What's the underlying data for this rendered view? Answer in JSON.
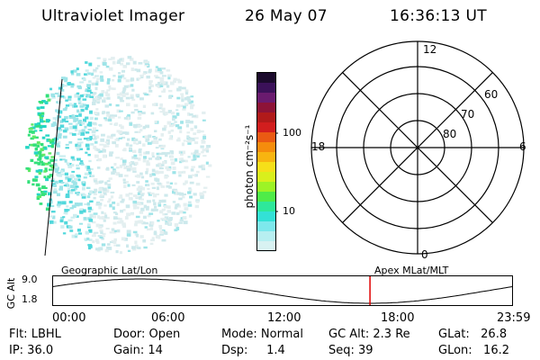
{
  "header": {
    "instrument": "Ultraviolet Imager",
    "date": "26 May 07",
    "time": "16:36:13 UT"
  },
  "colorbar": {
    "unit_label": "photon cm⁻²s⁻¹",
    "ticks": [
      "100",
      "10"
    ],
    "colors": [
      "#1b0a2c",
      "#3b1159",
      "#6a1b6f",
      "#8d1337",
      "#b11a1a",
      "#d21e1e",
      "#ea5a13",
      "#f58c0c",
      "#f8b410",
      "#f6df19",
      "#d9ef1c",
      "#9df326",
      "#4fec48",
      "#2ee89a",
      "#33e1d6",
      "#7de8ec",
      "#b7eff1",
      "#d8f2f2"
    ]
  },
  "polar_plot": {
    "mlt_labels": {
      "top": "12",
      "left": "18",
      "right": "6",
      "bottom": "0"
    },
    "mlat_labels": [
      "60",
      "70",
      "80"
    ]
  },
  "timeline": {
    "ylabel": "GC Alt",
    "yticks": [
      "9.0",
      "1.8"
    ],
    "left_title": "Geographic Lat/Lon",
    "right_title": "Apex MLat/MLT",
    "xticks": [
      "00:00",
      "06:00",
      "12:00",
      "18:00",
      "23:59"
    ],
    "current_time_fraction": 0.69,
    "marker_color": "#e00000"
  },
  "status": {
    "filter": "Flt: LBHL",
    "ip": "IP: 36.0",
    "door": "Door: Open",
    "gain": "Gain: 14",
    "mode": "Mode: Normal",
    "dsp": "Dsp:     1.4",
    "gc_alt": "GC Alt: 2.3 Re",
    "seq": "Seq: 39",
    "glat": "GLat:   26.8",
    "glon": "GLon:   16.2"
  }
}
